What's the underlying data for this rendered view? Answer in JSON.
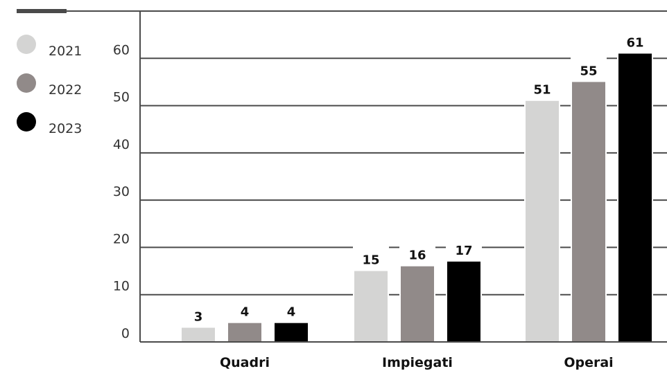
{
  "chart_data": {
    "type": "bar",
    "categories": [
      "Quadri",
      "Impiegati",
      "Operai"
    ],
    "series": [
      {
        "name": "2021",
        "values": [
          3,
          15,
          51
        ],
        "color": "#d4d4d3"
      },
      {
        "name": "2022",
        "values": [
          4,
          16,
          55
        ],
        "color": "#918a89"
      },
      {
        "name": "2023",
        "values": [
          4,
          17,
          61
        ],
        "color": "#000000"
      }
    ],
    "ylim": [
      0,
      70
    ],
    "yticks": [
      0,
      10,
      20,
      30,
      40,
      50,
      60
    ],
    "grid": true,
    "legend_position": "top-left",
    "title": "",
    "xlabel": "",
    "ylabel": ""
  }
}
